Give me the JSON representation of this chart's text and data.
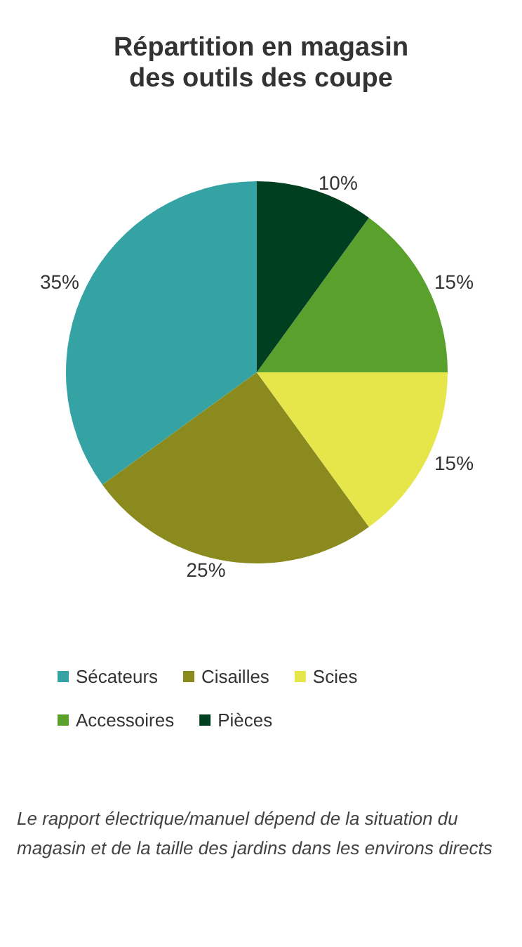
{
  "chart_data": {
    "type": "pie",
    "title": "Répartition en magasin\ndes outils des coupe",
    "categories": [
      "Sécateurs",
      "Cisailles",
      "Scies",
      "Accessoires",
      "Pièces"
    ],
    "values": [
      35,
      25,
      15,
      15,
      10
    ],
    "colors": [
      "#35a3a3",
      "#8a8a1e",
      "#e6e64a",
      "#5aa02c",
      "#003f1f"
    ],
    "value_labels": [
      "35%",
      "25%",
      "15%",
      "15%",
      "10%"
    ],
    "legend": "bottom",
    "annotations": [
      "Le rapport électrique/manuel dépend de la situation du magasin et de la taille des jardins dans les environs directs"
    ]
  }
}
